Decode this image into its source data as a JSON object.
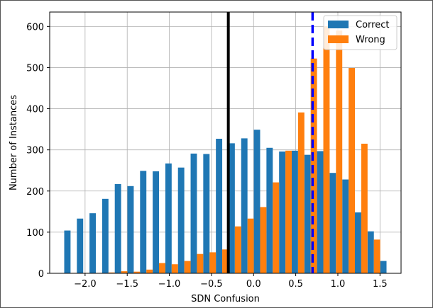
{
  "chart_data": {
    "type": "bar",
    "xlabel": "SDN Confusion",
    "ylabel": "Number of Instances",
    "xlim": [
      -2.42,
      1.75
    ],
    "ylim": [
      0,
      635
    ],
    "xticks": [
      -2.0,
      -1.5,
      -1.0,
      -0.5,
      0.0,
      0.5,
      1.0,
      1.5
    ],
    "xtick_labels": [
      "−2.0",
      "−1.5",
      "−1.0",
      "−0.5",
      "0.0",
      "0.5",
      "1.0",
      "1.5"
    ],
    "yticks": [
      0,
      100,
      200,
      300,
      400,
      500,
      600
    ],
    "ytick_labels": [
      "0",
      "100",
      "200",
      "300",
      "400",
      "500",
      "600"
    ],
    "grid": true,
    "legend_position": "upper right",
    "bin_width": 0.075,
    "series": [
      {
        "name": "Correct",
        "color": "#1f77b4",
        "x": [
          -2.21,
          -2.06,
          -1.91,
          -1.76,
          -1.61,
          -1.46,
          -1.31,
          -1.16,
          -1.01,
          -0.86,
          -0.71,
          -0.56,
          -0.41,
          -0.26,
          -0.11,
          0.04,
          0.19,
          0.34,
          0.49,
          0.64,
          0.79,
          0.94,
          1.09,
          1.24,
          1.39,
          1.54
        ],
        "values": [
          104,
          133,
          146,
          181,
          217,
          212,
          249,
          248,
          267,
          257,
          291,
          290,
          327,
          316,
          328,
          349,
          305,
          296,
          298,
          288,
          297,
          244,
          228,
          148,
          102,
          30
        ]
      },
      {
        "name": "Wrong",
        "color": "#ff7f0e",
        "x": [
          -2.135,
          -1.985,
          -1.835,
          -1.685,
          -1.535,
          -1.385,
          -1.235,
          -1.085,
          -0.935,
          -0.785,
          -0.635,
          -0.485,
          -0.335,
          -0.185,
          -0.035,
          0.115,
          0.265,
          0.415,
          0.565,
          0.715,
          0.865,
          1.015,
          1.165,
          1.315,
          1.465,
          1.615
        ],
        "values": [
          1,
          1,
          1,
          2,
          5,
          4,
          9,
          25,
          22,
          30,
          47,
          51,
          58,
          114,
          133,
          161,
          221,
          298,
          391,
          522,
          600,
          590,
          499,
          315,
          82,
          0
        ]
      }
    ],
    "vlines": [
      {
        "x": -0.3,
        "color": "#000000",
        "style": "solid"
      },
      {
        "x": 0.7,
        "color": "#0000ff",
        "style": "dashed"
      }
    ]
  }
}
